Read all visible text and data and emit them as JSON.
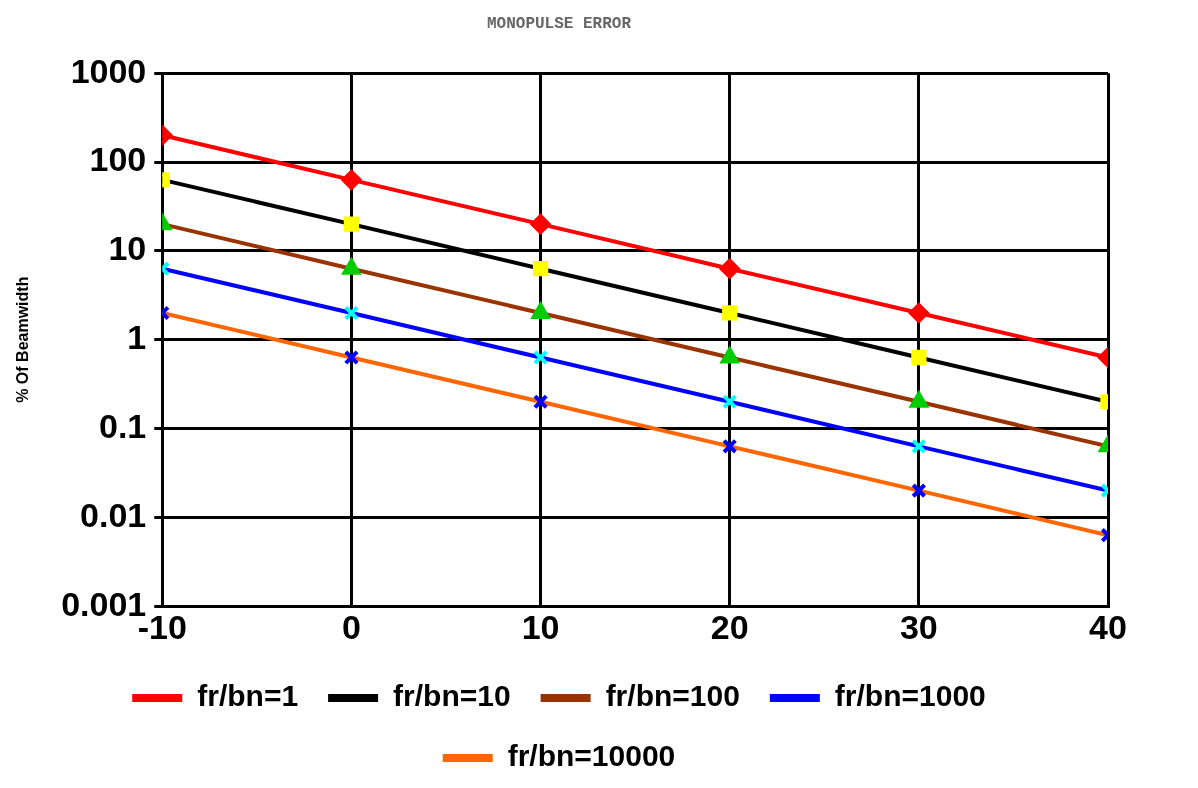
{
  "chart_data": {
    "type": "line",
    "title": "MONOPULSE ERROR",
    "ylabel": "% Of Beamwidth",
    "x": [
      -10,
      0,
      10,
      20,
      30,
      40
    ],
    "xlim": [
      -10,
      40
    ],
    "xticks": [
      -10,
      0,
      10,
      20,
      30,
      40
    ],
    "ylim": [
      0.001,
      1000
    ],
    "yticks": [
      1000,
      100,
      10,
      1,
      0.1,
      0.01,
      0.001
    ],
    "log": "y",
    "grid": true,
    "legend": "bottom",
    "series": [
      {
        "name": "fr/bn=1",
        "color": "#ff0000",
        "colors": [
          "#ff0000",
          "#ff0000",
          "#ff0000",
          "#ff0000",
          "#ff0000",
          "#ff0000"
        ],
        "marker": "diamond",
        "values": [
          200,
          63,
          20,
          6.3,
          2,
          0.63
        ]
      },
      {
        "name": "fr/bn=10",
        "color": "#000000",
        "colors": [
          "#ffff00",
          "#ffff00",
          "#ffff00",
          "#ffff00",
          "#ffff00",
          "#ffff00"
        ],
        "marker": "square",
        "values": [
          63,
          20,
          6.3,
          2,
          0.63,
          0.2
        ]
      },
      {
        "name": "fr/bn=100",
        "color": "#993300",
        "colors": [
          "#00cc00",
          "#00cc00",
          "#00cc00",
          "#00cc00",
          "#00cc00",
          "#00cc00"
        ],
        "marker": "triangle",
        "values": [
          20,
          6.3,
          2,
          0.63,
          0.2,
          0.063
        ]
      },
      {
        "name": "fr/bn=1000",
        "color": "#0000ff",
        "colors": [
          "#00ffff",
          "#00ffff",
          "#00ffff",
          "#00ffff",
          "#00ffff",
          "#00ffff"
        ],
        "marker": "cross",
        "values": [
          6.3,
          2,
          0.63,
          0.2,
          0.063,
          0.02
        ]
      },
      {
        "name": "fr/bn=10000",
        "color": "#ff6600",
        "colors": [
          "#0000ff",
          "#0000ff",
          "#0000ff",
          "#0000ff",
          "#0000ff",
          "#0000ff"
        ],
        "marker": "cross",
        "values": [
          2,
          0.63,
          0.2,
          0.063,
          0.02,
          0.0063
        ]
      }
    ]
  }
}
